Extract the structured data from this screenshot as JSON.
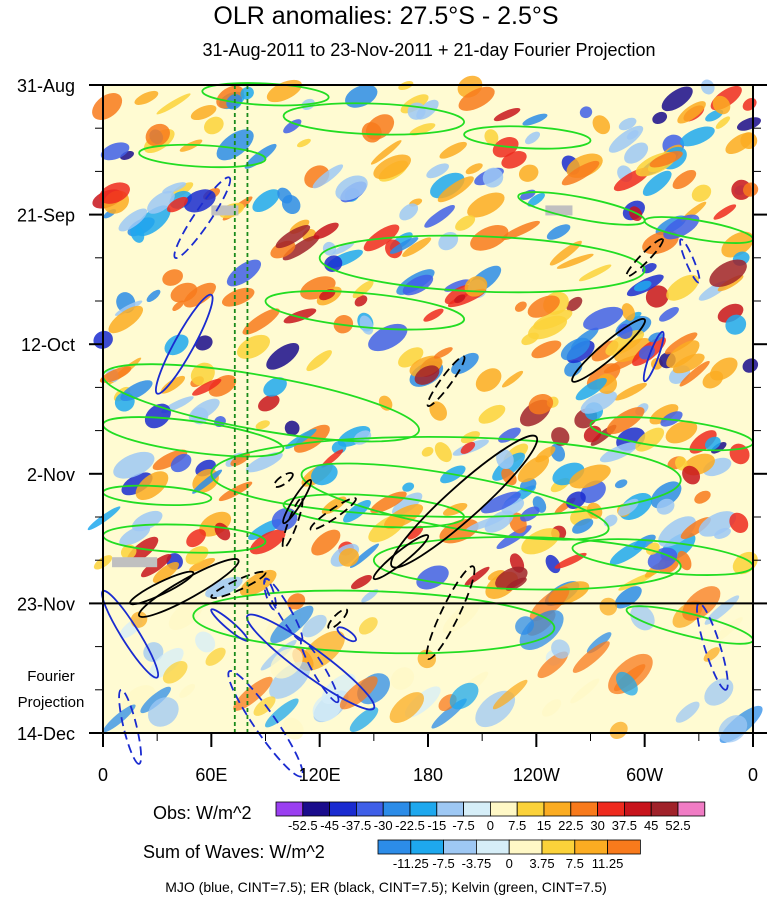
{
  "chart_data": {
    "type": "heatmap",
    "title": "OLR anomalies: 27.5°S - 2.5°S",
    "subtitle": "31-Aug-2011 to 23-Nov-2011 + 21-day Fourier Projection",
    "x_tick_labels": [
      "0",
      "60E",
      "120E",
      "180",
      "120W",
      "60W",
      "0"
    ],
    "x_tick_lon": [
      0,
      60,
      120,
      180,
      240,
      300,
      360
    ],
    "y_tick_labels": [
      "31-Aug",
      "21-Sep",
      "12-Oct",
      "2-Nov",
      "23-Nov",
      "14-Dec"
    ],
    "y_tick_day": [
      0,
      21,
      42,
      63,
      84,
      105
    ],
    "projection_start_label": "23-Nov",
    "projection_label": [
      "Fourier",
      "Projection"
    ],
    "obs_legend": {
      "label": "Obs: W/m^2",
      "ticks": [
        "-52.5",
        "-45",
        "-37.5",
        "-30",
        "-22.5",
        "-15",
        "-7.5",
        "0",
        "7.5",
        "15",
        "22.5",
        "30",
        "37.5",
        "45",
        "52.5"
      ],
      "colors": [
        "#9a3ff0",
        "#1a0c8c",
        "#1a2bd0",
        "#3f5fe8",
        "#2c8ce8",
        "#1ea8ee",
        "#9ec8f4",
        "#d6eef8",
        "#fff8c6",
        "#fbd23a",
        "#fbac22",
        "#f87a1c",
        "#ee2a1e",
        "#c8141c",
        "#a0222a",
        "#f07cc4"
      ]
    },
    "waves_legend": {
      "label": "Sum of Waves: W/m^2",
      "ticks": [
        "-11.25",
        "-7.5",
        "-3.75",
        "0",
        "3.75",
        "7.5",
        "11.25"
      ],
      "colors": [
        "#2c8ce8",
        "#1ea8ee",
        "#9ec8f4",
        "#d6eef8",
        "#fff8c6",
        "#fbd23a",
        "#fbac22",
        "#f87a1c"
      ]
    },
    "footnote": "MJO (blue, CINT=7.5); ER (black, CINT=7.5); Kelvin (green, CINT=7.5)",
    "contours": {
      "kelvin": {
        "color": "#22dd22",
        "lines": [
          [
            55,
            1,
            125,
            2
          ],
          [
            100,
            5,
            200,
            6
          ],
          [
            20,
            11,
            90,
            12
          ],
          [
            0,
            47,
            175,
            56
          ],
          [
            0,
            55,
            100,
            59
          ],
          [
            60,
            63,
            320,
            64
          ],
          [
            0,
            66,
            60,
            67
          ],
          [
            110,
            63,
            280,
            72
          ],
          [
            0,
            73,
            90,
            74
          ],
          [
            150,
            77,
            320,
            78
          ],
          [
            50,
            86,
            250,
            88
          ],
          [
            290,
            85,
            360,
            90
          ],
          [
            200,
            8,
            270,
            9
          ],
          [
            230,
            18,
            300,
            22
          ],
          [
            120,
            28,
            300,
            30
          ],
          [
            270,
            55,
            360,
            58
          ],
          [
            100,
            68,
            200,
            70
          ],
          [
            260,
            75,
            360,
            78
          ],
          [
            300,
            22,
            360,
            25
          ],
          [
            90,
            35,
            200,
            38
          ]
        ]
      },
      "er": {
        "color": "#000000",
        "solid": [
          [
            260,
            48,
            300,
            38
          ],
          [
            160,
            78,
            240,
            57
          ],
          [
            150,
            80,
            180,
            73
          ],
          [
            100,
            71,
            115,
            64
          ],
          [
            20,
            86,
            75,
            77
          ],
          [
            15,
            84,
            50,
            79
          ]
        ],
        "dashed": [
          [
            180,
            52,
            200,
            44
          ],
          [
            180,
            93,
            205,
            78
          ],
          [
            115,
            72,
            140,
            67
          ],
          [
            100,
            75,
            110,
            67
          ],
          [
            95,
            65,
            105,
            63
          ],
          [
            290,
            31,
            310,
            25
          ],
          [
            125,
            88,
            135,
            85
          ],
          [
            60,
            83,
            90,
            79
          ]
        ]
      },
      "mjo": {
        "color": "#1a2bd0",
        "solid": [
          [
            30,
            50,
            60,
            34
          ],
          [
            300,
            48,
            310,
            40
          ],
          [
            0,
            82,
            30,
            96
          ],
          [
            80,
            86,
            150,
            101
          ],
          [
            60,
            85,
            80,
            90
          ],
          [
            130,
            88,
            140,
            90
          ]
        ],
        "dashed": [
          [
            40,
            28,
            70,
            15
          ],
          [
            320,
            25,
            330,
            32
          ],
          [
            90,
            80,
            110,
            90
          ],
          [
            110,
            90,
            130,
            100
          ],
          [
            330,
            84,
            345,
            98
          ],
          [
            70,
            95,
            110,
            112
          ],
          [
            10,
            98,
            20,
            110
          ],
          [
            90,
            80,
            95,
            85
          ]
        ]
      }
    },
    "missing_data_boxes": [
      [
        60,
        20,
        75,
        21
      ],
      [
        245,
        20,
        260,
        21
      ],
      [
        5,
        77,
        30,
        78
      ]
    ],
    "vertical_reference_lon": [
      73,
      80
    ]
  }
}
